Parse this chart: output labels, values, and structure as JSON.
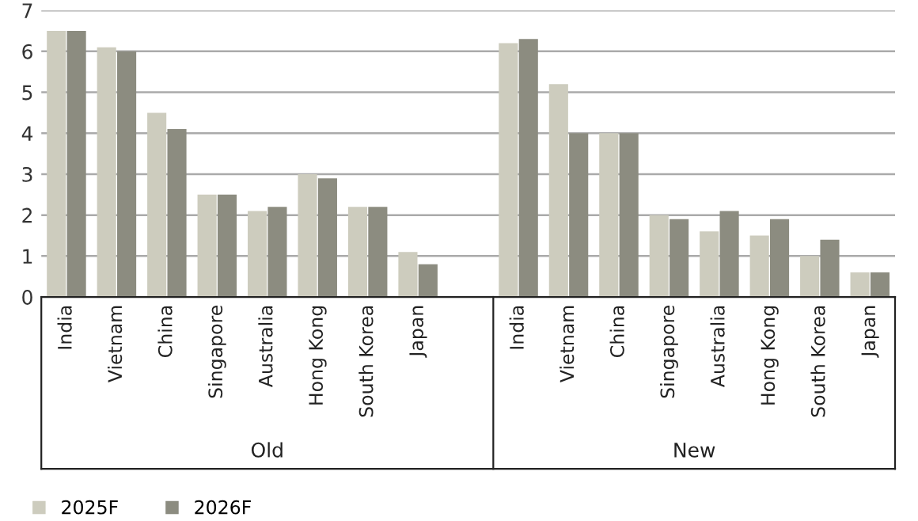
{
  "chart_data": {
    "type": "bar",
    "categories": [
      "India",
      "Vietnam",
      "China",
      "Singapore",
      "Australia",
      "Hong Kong",
      "South Korea",
      "Japan",
      null,
      "India",
      "Vietnam",
      "China",
      "Singapore",
      "Australia",
      "Hong Kong",
      "South Korea",
      "Japan"
    ],
    "series": [
      {
        "name": "2025F",
        "color": "#cdccbe",
        "values": [
          6.5,
          6.1,
          4.5,
          2.5,
          2.1,
          3.0,
          2.2,
          1.1,
          null,
          6.2,
          5.2,
          4.0,
          2.0,
          1.6,
          1.5,
          1.0,
          0.6
        ]
      },
      {
        "name": "2026F",
        "color": "#8c8c80",
        "values": [
          6.5,
          6.0,
          4.1,
          2.5,
          2.2,
          2.9,
          2.2,
          0.8,
          null,
          6.3,
          4.0,
          4.0,
          1.9,
          2.1,
          1.9,
          1.4,
          0.6
        ]
      }
    ],
    "annotations": [
      "Old",
      "New"
    ],
    "ylim": [
      0,
      7
    ],
    "yticks": [
      0,
      1,
      2,
      3,
      4,
      5,
      6,
      7
    ],
    "grid": "y",
    "legend": "bottom left"
  }
}
